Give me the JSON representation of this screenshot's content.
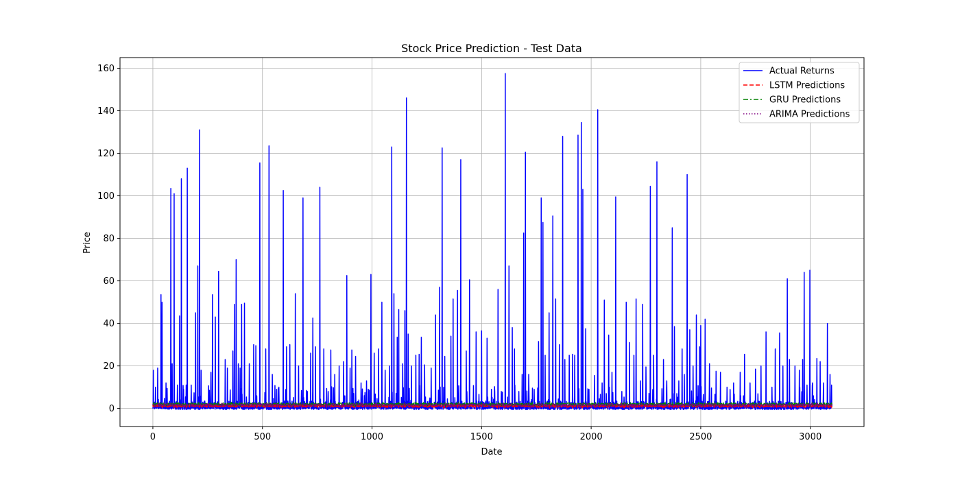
{
  "chart_data": {
    "type": "line",
    "title": "Stock Price Prediction - Test Data",
    "xlabel": "Date",
    "ylabel": "Price",
    "xlim": [
      -150,
      3245
    ],
    "ylim": [
      -8.5,
      165
    ],
    "xticks": [
      0,
      500,
      1000,
      1500,
      2000,
      2500,
      3000
    ],
    "yticks": [
      0,
      20,
      40,
      60,
      80,
      100,
      120,
      140,
      160
    ],
    "grid": true,
    "legend_position": "top-right",
    "n_points": 3100,
    "series": [
      {
        "name": "Actual Returns",
        "style": "solid",
        "color": "#0000ff",
        "peaks": [
          [
            2,
            18
          ],
          [
            12,
            10
          ],
          [
            22,
            19
          ],
          [
            37,
            53.5
          ],
          [
            42,
            50
          ],
          [
            60,
            12
          ],
          [
            82,
            103.5
          ],
          [
            88,
            21
          ],
          [
            97,
            101
          ],
          [
            112,
            11
          ],
          [
            122,
            43.5
          ],
          [
            130,
            108
          ],
          [
            140,
            9
          ],
          [
            152,
            11
          ],
          [
            157,
            113
          ],
          [
            175,
            11
          ],
          [
            195,
            45
          ],
          [
            205,
            67
          ],
          [
            213,
            131
          ],
          [
            220,
            18
          ],
          [
            265,
            17
          ],
          [
            272,
            53.5
          ],
          [
            285,
            43
          ],
          [
            300,
            64.5
          ],
          [
            330,
            23
          ],
          [
            340,
            19
          ],
          [
            365,
            27
          ],
          [
            372,
            49
          ],
          [
            380,
            70
          ],
          [
            390,
            21
          ],
          [
            398,
            19
          ],
          [
            405,
            49
          ],
          [
            418,
            49.5
          ],
          [
            440,
            21
          ],
          [
            460,
            30
          ],
          [
            470,
            29.5
          ],
          [
            488,
            115.5
          ],
          [
            515,
            28
          ],
          [
            530,
            123.5
          ],
          [
            545,
            16
          ],
          [
            565,
            9
          ],
          [
            595,
            102.5
          ],
          [
            610,
            29
          ],
          [
            625,
            30
          ],
          [
            650,
            54
          ],
          [
            665,
            20
          ],
          [
            685,
            99
          ],
          [
            705,
            8
          ],
          [
            720,
            26
          ],
          [
            730,
            42.5
          ],
          [
            742,
            29
          ],
          [
            762,
            104
          ],
          [
            780,
            28
          ],
          [
            800,
            8
          ],
          [
            812,
            27.5
          ],
          [
            830,
            16
          ],
          [
            850,
            20
          ],
          [
            870,
            22
          ],
          [
            885,
            62.5
          ],
          [
            900,
            19
          ],
          [
            908,
            27.5
          ],
          [
            925,
            24.5
          ],
          [
            950,
            12
          ],
          [
            975,
            13
          ],
          [
            995,
            63
          ],
          [
            1010,
            26
          ],
          [
            1030,
            28
          ],
          [
            1045,
            50
          ],
          [
            1060,
            18
          ],
          [
            1080,
            20
          ],
          [
            1090,
            123
          ],
          [
            1100,
            54
          ],
          [
            1115,
            33.5
          ],
          [
            1122,
            46.5
          ],
          [
            1140,
            21
          ],
          [
            1150,
            46
          ],
          [
            1157,
            146
          ],
          [
            1165,
            35
          ],
          [
            1180,
            20
          ],
          [
            1200,
            25
          ],
          [
            1215,
            25.5
          ],
          [
            1225,
            33.5
          ],
          [
            1240,
            20.5
          ],
          [
            1270,
            19
          ],
          [
            1290,
            44
          ],
          [
            1308,
            57
          ],
          [
            1320,
            122.5
          ],
          [
            1332,
            24.5
          ],
          [
            1360,
            34
          ],
          [
            1370,
            51.5
          ],
          [
            1390,
            55.5
          ],
          [
            1405,
            117
          ],
          [
            1430,
            27
          ],
          [
            1445,
            60.5
          ],
          [
            1475,
            36
          ],
          [
            1500,
            36.5
          ],
          [
            1525,
            33
          ],
          [
            1545,
            9
          ],
          [
            1560,
            8
          ],
          [
            1575,
            56
          ],
          [
            1590,
            8
          ],
          [
            1608,
            157.5
          ],
          [
            1625,
            67
          ],
          [
            1640,
            38
          ],
          [
            1650,
            28
          ],
          [
            1670,
            8
          ],
          [
            1685,
            16
          ],
          [
            1692,
            82.5
          ],
          [
            1700,
            120.5
          ],
          [
            1715,
            16
          ],
          [
            1740,
            9
          ],
          [
            1760,
            31.5
          ],
          [
            1772,
            99
          ],
          [
            1780,
            87.5
          ],
          [
            1790,
            25
          ],
          [
            1808,
            45
          ],
          [
            1825,
            90.5
          ],
          [
            1838,
            51.5
          ],
          [
            1855,
            30
          ],
          [
            1870,
            128
          ],
          [
            1880,
            23
          ],
          [
            1900,
            25
          ],
          [
            1915,
            25.5
          ],
          [
            1925,
            25
          ],
          [
            1940,
            128.5
          ],
          [
            1955,
            134.5
          ],
          [
            1962,
            103
          ],
          [
            1975,
            37.5
          ],
          [
            1990,
            9
          ],
          [
            2015,
            15.5
          ],
          [
            2030,
            140.5
          ],
          [
            2050,
            12
          ],
          [
            2060,
            51
          ],
          [
            2080,
            34.5
          ],
          [
            2095,
            17
          ],
          [
            2112,
            99.5
          ],
          [
            2140,
            8
          ],
          [
            2160,
            50
          ],
          [
            2175,
            31
          ],
          [
            2195,
            25
          ],
          [
            2205,
            51.5
          ],
          [
            2225,
            13
          ],
          [
            2235,
            49
          ],
          [
            2250,
            19.5
          ],
          [
            2270,
            104.5
          ],
          [
            2285,
            25
          ],
          [
            2300,
            116
          ],
          [
            2330,
            23
          ],
          [
            2345,
            13
          ],
          [
            2370,
            85
          ],
          [
            2380,
            38.5
          ],
          [
            2400,
            13
          ],
          [
            2415,
            28
          ],
          [
            2425,
            16
          ],
          [
            2438,
            110
          ],
          [
            2450,
            37
          ],
          [
            2465,
            20
          ],
          [
            2480,
            44
          ],
          [
            2495,
            29
          ],
          [
            2500,
            39
          ],
          [
            2520,
            42
          ],
          [
            2540,
            21
          ],
          [
            2570,
            17.5
          ],
          [
            2590,
            17
          ],
          [
            2620,
            10
          ],
          [
            2650,
            12
          ],
          [
            2680,
            17
          ],
          [
            2700,
            25.5
          ],
          [
            2725,
            12
          ],
          [
            2750,
            18.5
          ],
          [
            2775,
            20
          ],
          [
            2798,
            36
          ],
          [
            2825,
            10
          ],
          [
            2840,
            28
          ],
          [
            2860,
            35.5
          ],
          [
            2875,
            20
          ],
          [
            2895,
            61
          ],
          [
            2905,
            23
          ],
          [
            2930,
            20
          ],
          [
            2950,
            18
          ],
          [
            2965,
            23
          ],
          [
            2972,
            64
          ],
          [
            2985,
            11
          ],
          [
            2998,
            65
          ],
          [
            3010,
            12
          ],
          [
            3030,
            23.5
          ],
          [
            3045,
            22
          ],
          [
            3060,
            12
          ],
          [
            3078,
            40
          ],
          [
            3090,
            16
          ],
          [
            3097,
            11
          ]
        ]
      },
      {
        "name": "LSTM Predictions",
        "style": "dashed",
        "color": "#ff0000",
        "mean": 1.2
      },
      {
        "name": "GRU Predictions",
        "style": "dashdot",
        "color": "#008000",
        "mean": 2.0
      },
      {
        "name": "ARIMA Predictions",
        "style": "dotted",
        "color": "#800080",
        "mean": 1.6
      }
    ]
  }
}
